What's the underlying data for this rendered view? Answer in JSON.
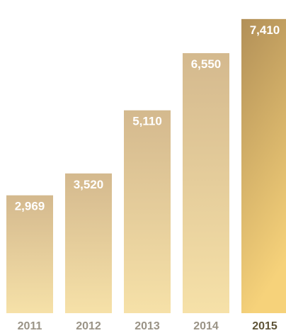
{
  "chart_data": {
    "type": "bar",
    "categories": [
      "2011",
      "2012",
      "2013",
      "2014",
      "2015"
    ],
    "values": [
      2969,
      3520,
      5110,
      6550,
      7410
    ],
    "value_labels": [
      "2,969",
      "3,520",
      "5,110",
      "6,550",
      "7,410"
    ],
    "highlighted_category": "2015",
    "title": "",
    "xlabel": "",
    "ylabel": "",
    "ylim": [
      0,
      7800
    ],
    "grid": false,
    "colors": {
      "bar_top": "#d4b98e",
      "bar_bottom": "#f6e1a8",
      "highlight_top": "#b29058",
      "highlight_bottom": "#f6d27a",
      "label_text": "#ffffff",
      "tick_text": "#9a9386",
      "highlight_tick_text": "#5f5438"
    }
  }
}
